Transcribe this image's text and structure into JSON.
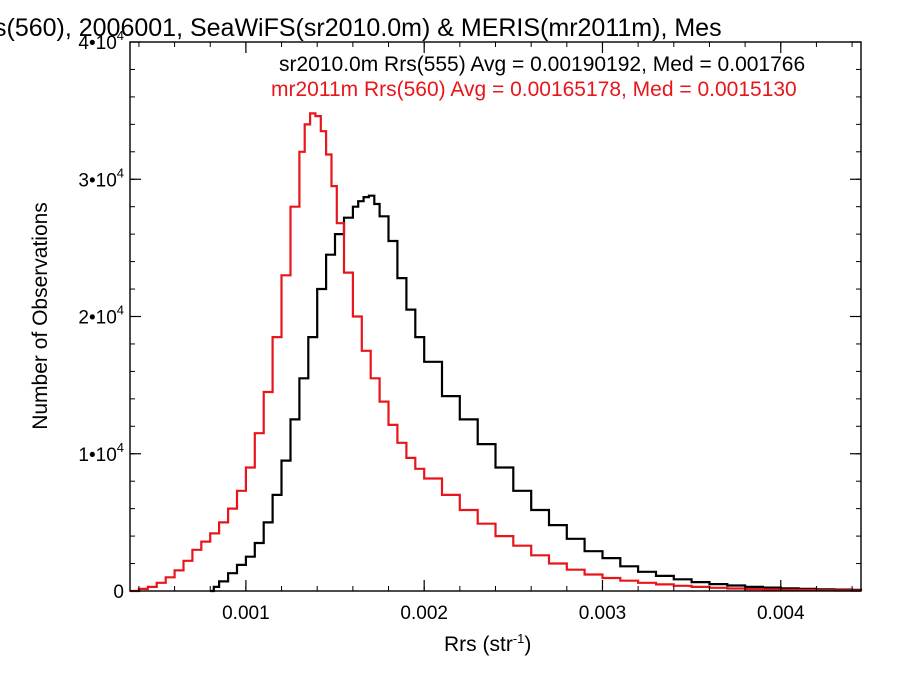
{
  "chart_data": {
    "type": "line",
    "title": "s(560), 2006001, SeaWiFS(sr2010.0m) & MERIS(mr2011m), Mes",
    "xlabel": "Rrs (str",
    "xlabel_sup": "-1",
    "xlabel_end": ")",
    "ylabel": "Number of Observations",
    "xlim": [
      0.00035,
      0.00445
    ],
    "ylim": [
      0,
      40000
    ],
    "x_ticks": [
      {
        "value": 0.001,
        "label": "0.001"
      },
      {
        "value": 0.002,
        "label": "0.002"
      },
      {
        "value": 0.003,
        "label": "0.003"
      },
      {
        "value": 0.004,
        "label": "0.004"
      }
    ],
    "y_ticks": [
      {
        "value": 0,
        "label": "0",
        "power": ""
      },
      {
        "value": 10000,
        "label": "1•10",
        "power": "4"
      },
      {
        "value": 20000,
        "label": "2•10",
        "power": "4"
      },
      {
        "value": 30000,
        "label": "3•10",
        "power": "4"
      },
      {
        "value": 40000,
        "label": "4•10",
        "power": "4"
      }
    ],
    "legend": [
      {
        "text": "sr2010.0m Rrs(555) Avg = 0.00190192, Med = 0.001766",
        "color": "#000000"
      },
      {
        "text": "mr2011m Rrs(560) Avg = 0.00165178, Med = 0.0015130",
        "color": "#e8161b"
      }
    ],
    "series": [
      {
        "color": "#000000",
        "x": [
          0.0008,
          0.00082,
          0.00085,
          0.0009,
          0.00095,
          0.001,
          0.00105,
          0.0011,
          0.00115,
          0.0012,
          0.00125,
          0.0013,
          0.00135,
          0.0014,
          0.00145,
          0.0015,
          0.00155,
          0.0016,
          0.00163,
          0.00166,
          0.00169,
          0.00172,
          0.00175,
          0.0018,
          0.00185,
          0.0019,
          0.00195,
          0.002,
          0.0021,
          0.0022,
          0.0023,
          0.0024,
          0.0025,
          0.0026,
          0.0027,
          0.0028,
          0.0029,
          0.003,
          0.0031,
          0.0032,
          0.0033,
          0.0034,
          0.0035,
          0.0036,
          0.0037,
          0.0038,
          0.0039,
          0.004,
          0.0041,
          0.0042,
          0.0043,
          0.0044,
          0.00445
        ],
        "y": [
          0,
          300,
          700,
          1300,
          1900,
          2500,
          3500,
          5000,
          7000,
          9500,
          12500,
          15500,
          18500,
          22000,
          24500,
          26000,
          27200,
          28000,
          28400,
          28700,
          28800,
          28200,
          27300,
          25500,
          22800,
          20500,
          18500,
          16700,
          14200,
          12500,
          10700,
          9000,
          7300,
          5900,
          4800,
          3800,
          2900,
          2400,
          1800,
          1400,
          1100,
          850,
          650,
          500,
          400,
          300,
          250,
          200,
          150,
          120,
          100,
          80,
          70
        ]
      },
      {
        "color": "#e8161b",
        "x": [
          0.00035,
          0.0004,
          0.00045,
          0.0005,
          0.00055,
          0.0006,
          0.00065,
          0.0007,
          0.00075,
          0.0008,
          0.00085,
          0.0009,
          0.00095,
          0.001,
          0.00105,
          0.0011,
          0.00115,
          0.0012,
          0.00125,
          0.0013,
          0.00133,
          0.00136,
          0.00139,
          0.00142,
          0.00145,
          0.00148,
          0.00151,
          0.00155,
          0.0016,
          0.00165,
          0.0017,
          0.00175,
          0.0018,
          0.00185,
          0.0019,
          0.00195,
          0.002,
          0.0021,
          0.0022,
          0.0023,
          0.0024,
          0.0025,
          0.0026,
          0.0027,
          0.0028,
          0.0029,
          0.003,
          0.0031,
          0.0032,
          0.0033,
          0.0034,
          0.0035,
          0.0036,
          0.0037,
          0.0038,
          0.0039,
          0.004,
          0.0041,
          0.0042,
          0.0043,
          0.0044,
          0.00445
        ],
        "y": [
          0,
          150,
          300,
          600,
          1000,
          1500,
          2200,
          3000,
          3600,
          4200,
          5000,
          6000,
          7300,
          9000,
          11500,
          14500,
          18500,
          23000,
          28000,
          32000,
          34000,
          34800,
          34600,
          33500,
          31800,
          29500,
          26800,
          23200,
          20000,
          17500,
          15500,
          13800,
          12100,
          10800,
          9700,
          8900,
          8200,
          7000,
          5900,
          4900,
          4000,
          3300,
          2600,
          2000,
          1550,
          1200,
          950,
          750,
          600,
          480,
          380,
          300,
          230,
          180,
          140,
          110,
          90,
          70,
          50,
          40,
          30,
          25
        ]
      }
    ]
  }
}
